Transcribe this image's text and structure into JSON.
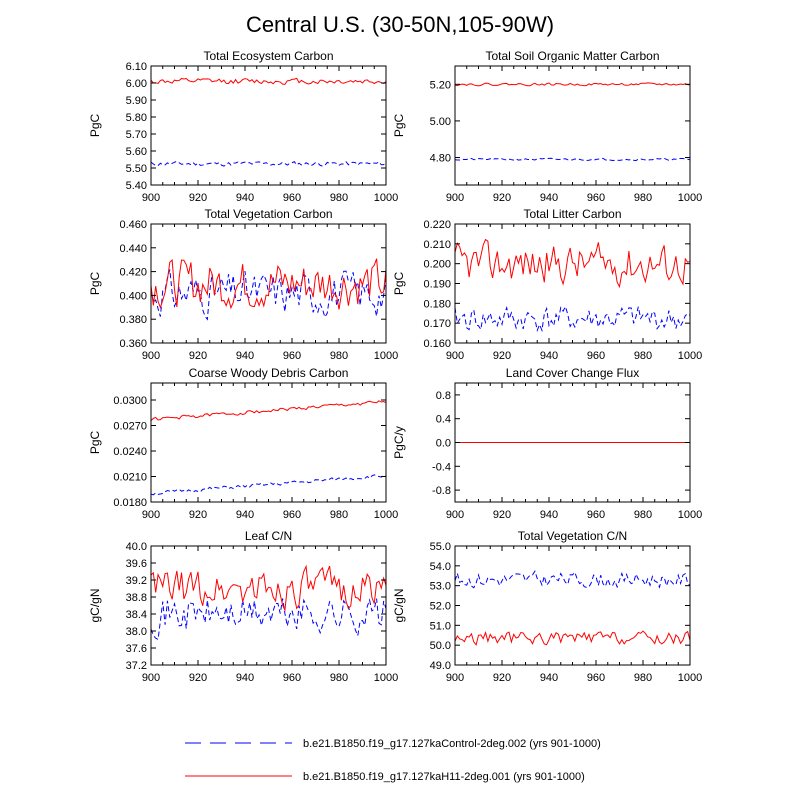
{
  "figure": {
    "title": "Central U.S. (30-50N,105-90W)",
    "legend": [
      {
        "label": "b.e21.B1850.f19_g17.127kaControl-2deg.002 (yrs 901-1000)",
        "color": "#0000ff",
        "style": "dashed"
      },
      {
        "label": "b.e21.B1850.f19_g17.127kaH11-2deg.001 (yrs 901-1000)",
        "color": "#ff0000",
        "style": "solid"
      }
    ],
    "colors": {
      "control": "#0000ff",
      "experiment": "#ff0000"
    }
  },
  "chart_data": [
    {
      "type": "line",
      "title": "Total Ecosystem Carbon",
      "ylabel": "PgC",
      "xlim": [
        900,
        1000
      ],
      "ylim": [
        5.4,
        6.1
      ],
      "xticks": [
        "900",
        "920",
        "940",
        "960",
        "980",
        "1000"
      ],
      "yticks": [
        "5.40",
        "5.50",
        "5.60",
        "5.70",
        "5.80",
        "5.90",
        "6.00",
        "6.10"
      ],
      "series": [
        {
          "name": "control",
          "style": "dashed",
          "mean": 5.525,
          "amp": 0.012,
          "seed": 11
        },
        {
          "name": "experiment",
          "style": "solid",
          "mean": 6.01,
          "amp": 0.015,
          "seed": 12
        }
      ]
    },
    {
      "type": "line",
      "title": "Total Soil Organic Matter Carbon",
      "ylabel": "PgC",
      "xlim": [
        900,
        1000
      ],
      "ylim": [
        4.65,
        5.3
      ],
      "xticks": [
        "900",
        "920",
        "940",
        "960",
        "980",
        "1000"
      ],
      "yticks": [
        "4.80",
        "5.00",
        "5.20"
      ],
      "series": [
        {
          "name": "control",
          "style": "dashed",
          "mean": 4.79,
          "amp": 0.005,
          "seed": 21
        },
        {
          "name": "experiment",
          "style": "solid",
          "mean": 5.2,
          "amp": 0.006,
          "seed": 22
        }
      ]
    },
    {
      "type": "line",
      "title": "Total Vegetation Carbon",
      "ylabel": "PgC",
      "xlim": [
        900,
        1000
      ],
      "ylim": [
        0.36,
        0.46
      ],
      "xticks": [
        "900",
        "920",
        "940",
        "960",
        "980",
        "1000"
      ],
      "yticks": [
        "0.360",
        "0.380",
        "0.400",
        "0.420",
        "0.440",
        "0.460"
      ],
      "series": [
        {
          "name": "control",
          "style": "dashed",
          "mean": 0.402,
          "amp": 0.016,
          "seed": 31
        },
        {
          "name": "experiment",
          "style": "solid",
          "mean": 0.41,
          "amp": 0.018,
          "seed": 32
        }
      ]
    },
    {
      "type": "line",
      "title": "Total Litter Carbon",
      "ylabel": "PgC",
      "xlim": [
        900,
        1000
      ],
      "ylim": [
        0.16,
        0.22
      ],
      "xticks": [
        "900",
        "920",
        "940",
        "960",
        "980",
        "1000"
      ],
      "yticks": [
        "0.160",
        "0.170",
        "0.180",
        "0.190",
        "0.200",
        "0.210",
        "0.220"
      ],
      "series": [
        {
          "name": "control",
          "style": "dashed",
          "mean": 0.172,
          "amp": 0.006,
          "seed": 41
        },
        {
          "name": "experiment",
          "style": "solid",
          "mean": 0.2,
          "amp": 0.009,
          "seed": 42
        }
      ]
    },
    {
      "type": "line",
      "title": "Coarse Woody Debris Carbon",
      "ylabel": "PgC",
      "xlim": [
        900,
        1000
      ],
      "ylim": [
        0.018,
        0.032
      ],
      "xticks": [
        "900",
        "920",
        "940",
        "960",
        "980",
        "1000"
      ],
      "yticks": [
        "0.0180",
        "0.0210",
        "0.0240",
        "0.0270",
        "0.0300"
      ],
      "series": [
        {
          "name": "control",
          "style": "dashed",
          "start": 0.019,
          "end": 0.0211,
          "amp": 0.0002,
          "seed": 51
        },
        {
          "name": "experiment",
          "style": "solid",
          "start": 0.0277,
          "end": 0.0298,
          "amp": 0.0002,
          "seed": 52
        }
      ]
    },
    {
      "type": "line",
      "title": "Land Cover Change Flux",
      "ylabel": "PgC/y",
      "xlim": [
        900,
        1000
      ],
      "ylim": [
        -1.0,
        1.0
      ],
      "xticks": [
        "900",
        "920",
        "940",
        "960",
        "980",
        "1000"
      ],
      "yticks": [
        "-0.8",
        "-0.4",
        "0.0",
        "0.4",
        "0.8"
      ],
      "series": [
        {
          "name": "control",
          "style": "dashed",
          "mean": 0.0,
          "amp": 0.0,
          "seed": 61
        },
        {
          "name": "experiment",
          "style": "solid",
          "mean": 0.0,
          "amp": 0.0,
          "seed": 62
        }
      ]
    },
    {
      "type": "line",
      "title": "Leaf C/N",
      "ylabel": "gC/gN",
      "xlim": [
        900,
        1000
      ],
      "ylim": [
        37.2,
        40.0
      ],
      "xticks": [
        "900",
        "920",
        "940",
        "960",
        "980",
        "1000"
      ],
      "yticks": [
        "37.2",
        "37.6",
        "38.0",
        "38.4",
        "38.8",
        "39.2",
        "39.6",
        "40.0"
      ],
      "series": [
        {
          "name": "control",
          "style": "dashed",
          "mean": 38.4,
          "amp": 0.4,
          "seed": 71
        },
        {
          "name": "experiment",
          "style": "solid",
          "mean": 39.0,
          "amp": 0.4,
          "seed": 72
        }
      ]
    },
    {
      "type": "line",
      "title": "Total Vegetation C/N",
      "ylabel": "gC/gN",
      "xlim": [
        900,
        1000
      ],
      "ylim": [
        49.0,
        55.0
      ],
      "xticks": [
        "900",
        "920",
        "940",
        "960",
        "980",
        "1000"
      ],
      "yticks": [
        "49.0",
        "50.0",
        "51.0",
        "52.0",
        "53.0",
        "54.0",
        "55.0"
      ],
      "series": [
        {
          "name": "control",
          "style": "dashed",
          "mean": 53.3,
          "amp": 0.35,
          "seed": 81
        },
        {
          "name": "experiment",
          "style": "solid",
          "mean": 50.35,
          "amp": 0.3,
          "seed": 82
        }
      ]
    }
  ]
}
